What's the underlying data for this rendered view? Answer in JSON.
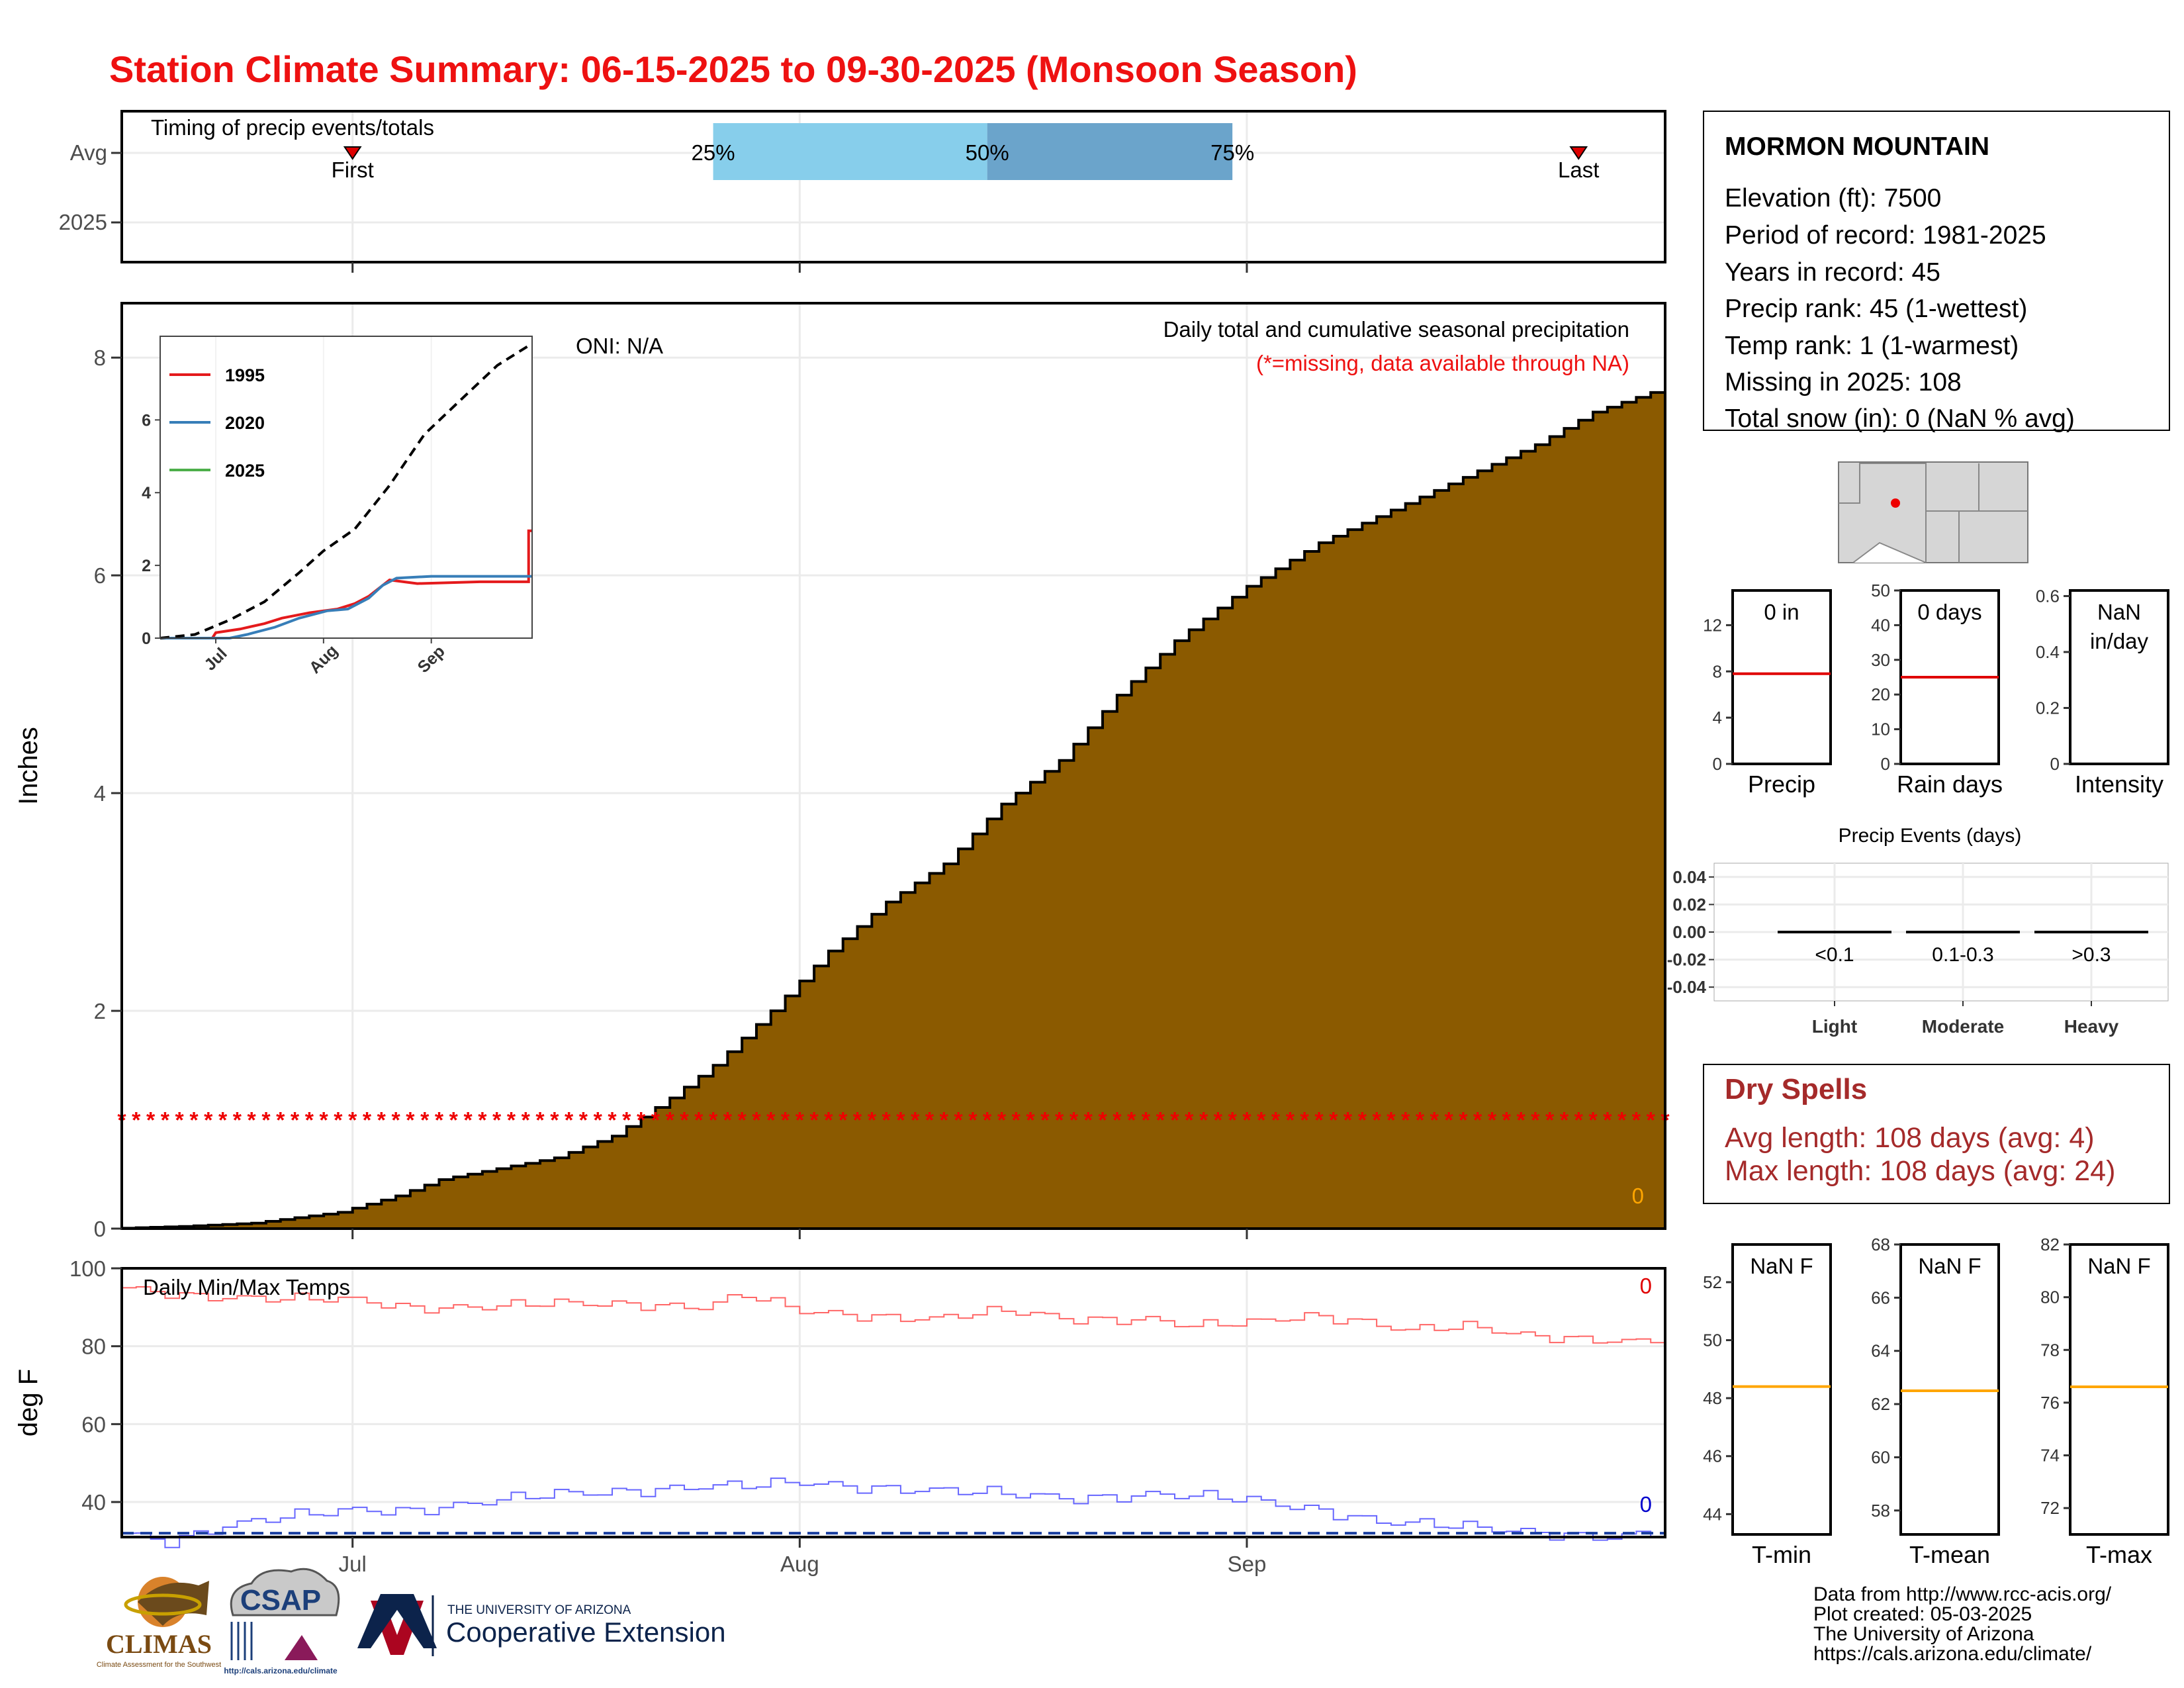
{
  "header": {
    "title": "Station Climate Summary: 06-15-2025 to 09-30-2025 (Monsoon Season)"
  },
  "timing": {
    "panel_label": "Timing of precip events/totals",
    "row_labels": [
      "Avg",
      "2025"
    ],
    "first_label": "First",
    "last_label": "Last",
    "first_date": "07-01",
    "last_date": "09-24",
    "quartiles": [
      {
        "label": "25%",
        "date": "07-26"
      },
      {
        "label": "50%",
        "date": "08-14"
      },
      {
        "label": "75%",
        "date": "08-31"
      }
    ],
    "colors": {
      "q1": "#87ceeb",
      "q2": "#6ba4cb",
      "marker": "#dd0000"
    }
  },
  "chart_data": [
    {
      "type": "area",
      "name": "cumulative_precip",
      "title": "Daily total and cumulative seasonal precipitation",
      "subtitle": "(*=missing, data available through NA)",
      "oni_label": "ONI: N/A",
      "ylabel": "Inches",
      "xlabel": "",
      "ylim": [
        0,
        8.5
      ],
      "yticks": [
        0,
        2,
        4,
        6,
        8
      ],
      "xticks": [
        {
          "label": "Jul",
          "date": "07-01"
        },
        {
          "label": "Aug",
          "date": "08-01"
        },
        {
          "label": "Sep",
          "date": "09-01"
        }
      ],
      "x_range": [
        "06-15",
        "09-30"
      ],
      "missing_marker": "*",
      "missing_level": 1.0,
      "corner_count": "0",
      "fill_color": "#8b5a00",
      "series": [
        {
          "name": "Average cumulative precip",
          "points": [
            [
              "06-15",
              0.0
            ],
            [
              "06-20",
              0.02
            ],
            [
              "06-25",
              0.05
            ],
            [
              "07-01",
              0.15
            ],
            [
              "07-05",
              0.3
            ],
            [
              "07-08",
              0.45
            ],
            [
              "07-12",
              0.55
            ],
            [
              "07-16",
              0.65
            ],
            [
              "07-20",
              0.85
            ],
            [
              "07-24",
              1.2
            ],
            [
              "07-27",
              1.5
            ],
            [
              "07-31",
              2.0
            ],
            [
              "08-04",
              2.55
            ],
            [
              "08-08",
              3.0
            ],
            [
              "08-12",
              3.35
            ],
            [
              "08-16",
              3.9
            ],
            [
              "08-20",
              4.3
            ],
            [
              "08-24",
              4.9
            ],
            [
              "08-28",
              5.4
            ],
            [
              "09-02",
              5.9
            ],
            [
              "09-07",
              6.3
            ],
            [
              "09-12",
              6.6
            ],
            [
              "09-17",
              6.9
            ],
            [
              "09-22",
              7.2
            ],
            [
              "09-26",
              7.5
            ],
            [
              "09-30",
              7.68
            ]
          ]
        }
      ]
    },
    {
      "type": "line",
      "name": "inset_cumulative",
      "ylim": [
        0,
        8.3
      ],
      "yticks": [
        0,
        2,
        4,
        6
      ],
      "xticks": [
        {
          "label": "Jul",
          "date": "07-01"
        },
        {
          "label": "Aug",
          "date": "08-01"
        },
        {
          "label": "Sep",
          "date": "09-01"
        }
      ],
      "series": [
        {
          "name": "1995",
          "color": "#e41a1c",
          "points": [
            [
              "06-15",
              0
            ],
            [
              "06-30",
              0
            ],
            [
              "07-01",
              0.15
            ],
            [
              "07-08",
              0.25
            ],
            [
              "07-15",
              0.4
            ],
            [
              "07-20",
              0.55
            ],
            [
              "07-28",
              0.7
            ],
            [
              "08-05",
              0.8
            ],
            [
              "08-10",
              0.95
            ],
            [
              "08-14",
              1.15
            ],
            [
              "08-20",
              1.6
            ],
            [
              "08-24",
              1.55
            ],
            [
              "08-28",
              1.5
            ],
            [
              "09-15",
              1.55
            ],
            [
              "09-29",
              1.55
            ],
            [
              "09-29",
              2.95
            ],
            [
              "09-30",
              2.95
            ]
          ]
        },
        {
          "name": "2020",
          "color": "#377eb8",
          "points": [
            [
              "06-15",
              0
            ],
            [
              "07-05",
              0
            ],
            [
              "07-10",
              0.1
            ],
            [
              "07-18",
              0.3
            ],
            [
              "07-25",
              0.55
            ],
            [
              "08-02",
              0.75
            ],
            [
              "08-08",
              0.8
            ],
            [
              "08-14",
              1.1
            ],
            [
              "08-18",
              1.45
            ],
            [
              "08-22",
              1.65
            ],
            [
              "09-01",
              1.7
            ],
            [
              "09-15",
              1.7
            ],
            [
              "09-30",
              1.7
            ]
          ]
        },
        {
          "name": "2025",
          "color": "#4daf4a",
          "points": []
        },
        {
          "name": "avg",
          "color": "#000000",
          "dashed": true,
          "show_in_legend": false,
          "points": [
            [
              "06-15",
              0
            ],
            [
              "06-25",
              0.1
            ],
            [
              "07-05",
              0.5
            ],
            [
              "07-15",
              1.0
            ],
            [
              "07-25",
              1.8
            ],
            [
              "08-01",
              2.4
            ],
            [
              "08-10",
              3.0
            ],
            [
              "08-20",
              4.2
            ],
            [
              "08-30",
              5.6
            ],
            [
              "09-10",
              6.6
            ],
            [
              "09-20",
              7.5
            ],
            [
              "09-30",
              8.1
            ]
          ]
        }
      ]
    },
    {
      "type": "line",
      "name": "daily_temps",
      "title": "Daily Min/Max Temps",
      "ylabel": "deg F",
      "ylim": [
        31,
        100
      ],
      "yticks": [
        40,
        60,
        80,
        100
      ],
      "xticks": [
        {
          "label": "Jul",
          "date": "07-01"
        },
        {
          "label": "Aug",
          "date": "08-01"
        },
        {
          "label": "Sep",
          "date": "09-01"
        }
      ],
      "count_max": "0",
      "count_min": "0",
      "freezing_line": 32,
      "series": [
        {
          "name": "Avg Max",
          "color": "#ff6666",
          "points": [
            [
              "06-15",
              95
            ],
            [
              "06-20",
              93
            ],
            [
              "06-25",
              92
            ],
            [
              "07-01",
              92
            ],
            [
              "07-05",
              90
            ],
            [
              "07-10",
              90
            ],
            [
              "07-15",
              91
            ],
            [
              "07-20",
              91
            ],
            [
              "07-25",
              90
            ],
            [
              "07-28",
              93
            ],
            [
              "08-01",
              89
            ],
            [
              "08-05",
              88
            ],
            [
              "08-10",
              87
            ],
            [
              "08-15",
              89
            ],
            [
              "08-20",
              87
            ],
            [
              "08-25",
              87
            ],
            [
              "08-28",
              85
            ],
            [
              "09-01",
              86
            ],
            [
              "09-05",
              88
            ],
            [
              "09-08",
              87
            ],
            [
              "09-12",
              84
            ],
            [
              "09-16",
              85
            ],
            [
              "09-20",
              83
            ],
            [
              "09-24",
              82
            ],
            [
              "09-28",
              81
            ],
            [
              "09-30",
              82
            ]
          ]
        },
        {
          "name": "Avg Min",
          "color": "#6666ff",
          "points": [
            [
              "06-15",
              32
            ],
            [
              "06-18",
              30
            ],
            [
              "06-22",
              34
            ],
            [
              "06-26",
              36
            ],
            [
              "07-01",
              38
            ],
            [
              "07-05",
              38
            ],
            [
              "07-10",
              40
            ],
            [
              "07-15",
              42
            ],
            [
              "07-20",
              43
            ],
            [
              "07-25",
              44
            ],
            [
              "07-28",
              44
            ],
            [
              "08-01",
              45
            ],
            [
              "08-05",
              44
            ],
            [
              "08-10",
              43
            ],
            [
              "08-15",
              42
            ],
            [
              "08-20",
              41
            ],
            [
              "08-25",
              42
            ],
            [
              "08-30",
              41
            ],
            [
              "09-02",
              40
            ],
            [
              "09-06",
              38
            ],
            [
              "09-10",
              35
            ],
            [
              "09-14",
              34
            ],
            [
              "09-18",
              33
            ],
            [
              "09-22",
              32
            ],
            [
              "09-26",
              31
            ],
            [
              "09-30",
              32
            ]
          ]
        }
      ]
    },
    {
      "type": "bar",
      "name": "precip_summary",
      "title": "",
      "ylim": [
        0,
        15
      ],
      "yticks": [
        0,
        4,
        8,
        12
      ],
      "value_label": "0 in",
      "avg_value": 7.8,
      "avg_color": "#e00000",
      "xlabel": "Precip"
    },
    {
      "type": "bar",
      "name": "raindays_summary",
      "ylim": [
        0,
        50
      ],
      "yticks": [
        0,
        10,
        20,
        30,
        40,
        50
      ],
      "value_label": "0 days",
      "avg_value": 25,
      "avg_color": "#e00000",
      "xlabel": "Rain days"
    },
    {
      "type": "bar",
      "name": "intensity_summary",
      "ylim": [
        0,
        0.62
      ],
      "yticks": [
        0.0,
        0.2,
        0.4,
        0.6
      ],
      "value_label_line1": "NaN",
      "value_label_line2": "in/day",
      "xlabel": "Intensity"
    },
    {
      "type": "bar",
      "name": "precip_events",
      "title": "Precip Events (days)",
      "ylim": [
        -0.05,
        0.05
      ],
      "yticks": [
        0.04,
        0.02,
        0.0,
        -0.02,
        -0.04
      ],
      "ytick_labels": [
        "0.04",
        "0.02",
        "0.00",
        "-0.02",
        "-0.04"
      ],
      "categories": [
        "Light",
        "Moderate",
        "Heavy"
      ],
      "bin_labels": [
        "<0.1",
        "0.1-0.3",
        ">0.3"
      ],
      "values": [
        0,
        0,
        0
      ]
    },
    {
      "type": "bar",
      "name": "tmin_summary",
      "ylim": [
        43.3,
        53.3
      ],
      "yticks": [
        44,
        46,
        48,
        50,
        52
      ],
      "value_label": "NaN F",
      "avg_value": 48.4,
      "avg_color": "#ffa500",
      "xlabel": "T-min"
    },
    {
      "type": "bar",
      "name": "tmean_summary",
      "ylim": [
        57.1,
        68
      ],
      "yticks": [
        58,
        60,
        62,
        64,
        66,
        68
      ],
      "value_label": "NaN F",
      "avg_value": 62.5,
      "avg_color": "#ffa500",
      "xlabel": "T-mean"
    },
    {
      "type": "bar",
      "name": "tmax_summary",
      "ylim": [
        71,
        82
      ],
      "yticks": [
        72,
        74,
        76,
        78,
        80,
        82
      ],
      "value_label": "NaN F",
      "avg_value": 76.6,
      "avg_color": "#ffa500",
      "xlabel": "T-max"
    }
  ],
  "station": {
    "name": "MORMON MOUNTAIN",
    "lines": [
      "Elevation (ft): 7500",
      "Period of record: 1981-2025",
      "Years in record: 45",
      "Precip rank: 45 (1-wettest)",
      "Temp rank: 1 (1-warmest)",
      "Missing in 2025: 108",
      "Total snow (in): 0 (NaN % avg)"
    ]
  },
  "dry_spells": {
    "title": "Dry Spells",
    "avg_line": "Avg length: 108 days (avg: 4)",
    "max_line": "Max length: 108 days (avg: 24)",
    "color": "#a52a2a"
  },
  "footer": {
    "credits": [
      "Data from http://www.rcc-acis.org/",
      "Plot created: 05-03-2025",
      "The University of Arizona",
      "https://cals.arizona.edu/climate/"
    ],
    "logos": {
      "climas": "CLIMAS",
      "climas_sub": "Climate Assessment for the Southwest",
      "csap": "CSAP",
      "csap_url": "http://cals.arizona.edu/climate",
      "ua_small": "THE UNIVERSITY OF ARIZONA",
      "ua_big": "Cooperative Extension"
    }
  },
  "colors": {
    "title": "#ee1111",
    "grid": "#ebebeb"
  }
}
